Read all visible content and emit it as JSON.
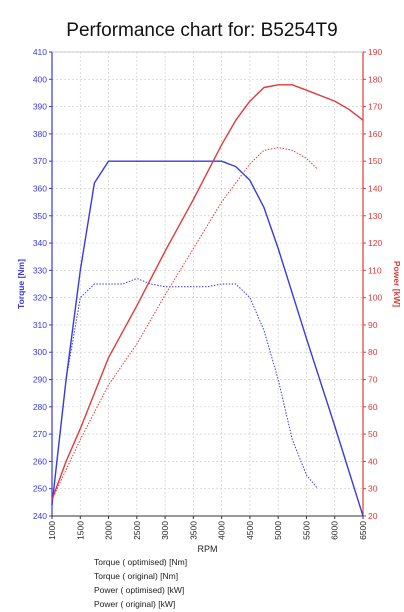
{
  "chart_data": {
    "type": "line",
    "title": "Performance chart for: B5254T9",
    "xlabel": "RPM",
    "ylabel_left": "Torque [Nm]",
    "ylabel_right": "Power [kW]",
    "xlim": [
      1000,
      6500
    ],
    "ylim_left": [
      240,
      410
    ],
    "ylim_right": [
      20,
      190
    ],
    "x_ticks": [
      1000,
      1500,
      2000,
      2500,
      3000,
      3500,
      4000,
      4500,
      5000,
      5500,
      6000,
      6500
    ],
    "y_ticks_left": [
      240,
      250,
      260,
      270,
      280,
      290,
      300,
      310,
      320,
      330,
      340,
      350,
      360,
      370,
      380,
      390,
      400,
      410
    ],
    "y_ticks_right": [
      20,
      30,
      40,
      50,
      60,
      70,
      80,
      90,
      100,
      110,
      120,
      130,
      140,
      150,
      160,
      170,
      180,
      190
    ],
    "grid": true,
    "legend_position": "bottom",
    "series": [
      {
        "name": "Torque ( optimised) [Nm]",
        "axis": "left",
        "color": "#3a3adf",
        "style": "solid",
        "x": [
          1000,
          1250,
          1500,
          1750,
          2000,
          2500,
          3000,
          3500,
          4000,
          4250,
          4500,
          4750,
          5000,
          5500,
          6000,
          6500
        ],
        "y": [
          244,
          290,
          330,
          362,
          370,
          370,
          370,
          370,
          370,
          368,
          363,
          353,
          338,
          305,
          273,
          240
        ]
      },
      {
        "name": "Torque ( original) [Nm]",
        "axis": "left",
        "color": "#3a3adf",
        "style": "dotted",
        "x": [
          1000,
          1250,
          1500,
          1750,
          2000,
          2250,
          2500,
          2750,
          3000,
          3250,
          3500,
          3750,
          4000,
          4250,
          4500,
          4750,
          5000,
          5250,
          5500,
          5700
        ],
        "y": [
          244,
          290,
          320,
          325,
          325,
          325,
          327,
          325,
          324,
          324,
          324,
          324,
          325,
          325,
          320,
          308,
          290,
          268,
          255,
          250
        ]
      },
      {
        "name": "Power ( optimised) [kW]",
        "axis": "right",
        "color": "#e03a3a",
        "style": "solid",
        "x": [
          1000,
          1250,
          1500,
          1750,
          2000,
          2500,
          3000,
          3500,
          4000,
          4250,
          4500,
          4750,
          5000,
          5250,
          5500,
          6000,
          6250,
          6500
        ],
        "y": [
          26,
          40,
          52,
          65,
          78,
          97,
          117,
          136,
          156,
          165,
          172,
          177,
          178,
          178,
          176,
          172,
          169,
          165
        ]
      },
      {
        "name": "Power ( original) [kW]",
        "axis": "right",
        "color": "#e03a3a",
        "style": "dotted",
        "x": [
          1000,
          1500,
          2000,
          2500,
          3000,
          3500,
          4000,
          4500,
          4750,
          5000,
          5250,
          5500,
          5700
        ],
        "y": [
          26,
          48,
          68,
          83,
          101,
          118,
          135,
          149,
          154,
          155,
          154,
          151,
          147
        ]
      }
    ]
  }
}
